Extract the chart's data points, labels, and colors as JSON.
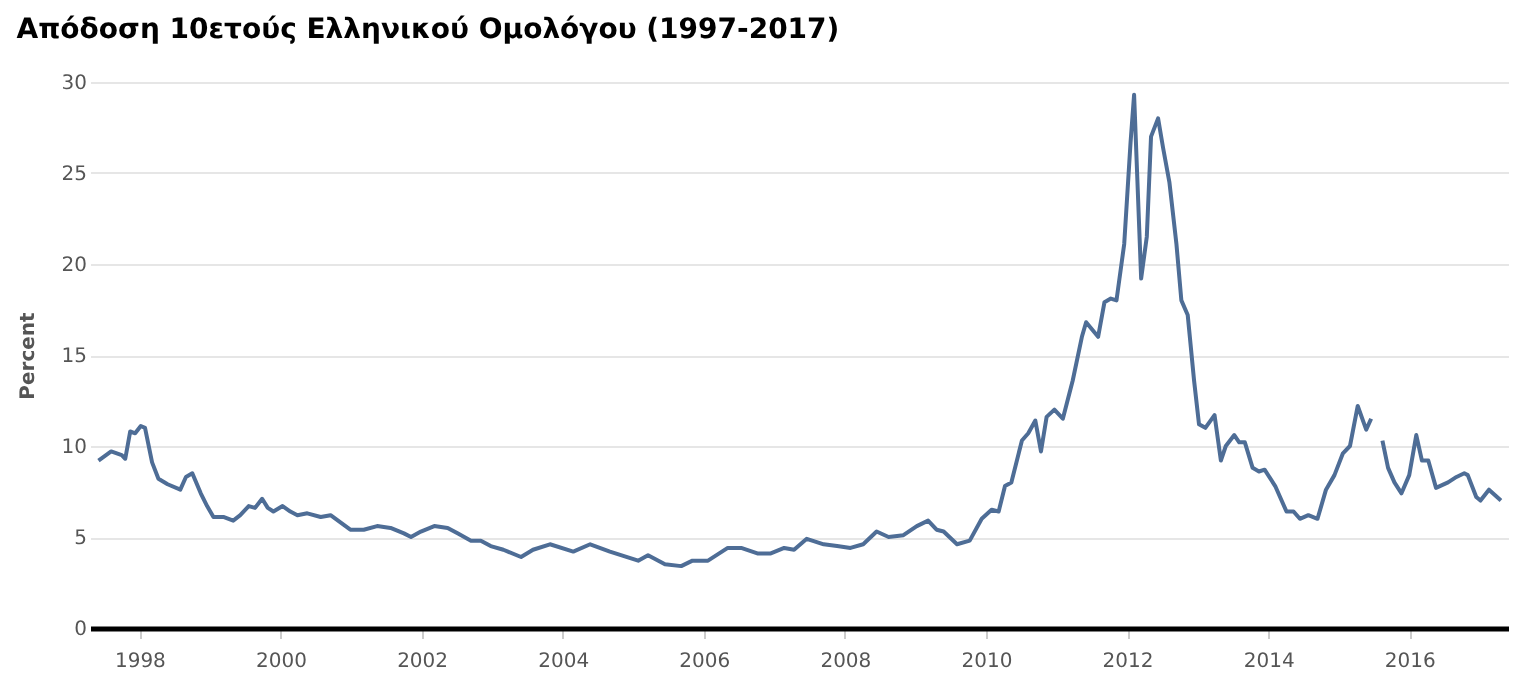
{
  "chart_data": {
    "type": "line",
    "title": "Απόδοση 10ετούς Ελληνικού Ομολόγου (1997-2017)",
    "ylabel": "Percent",
    "x": [
      1997.42,
      1997.6,
      1997.75,
      1997.8,
      1997.87,
      1997.94,
      1998.02,
      1998.08,
      1998.18,
      1998.27,
      1998.4,
      1998.58,
      1998.66,
      1998.75,
      1998.87,
      1998.96,
      1999.05,
      1999.19,
      1999.33,
      1999.43,
      1999.55,
      1999.64,
      1999.74,
      1999.82,
      1999.9,
      2000.03,
      2000.14,
      2000.24,
      2000.38,
      2000.57,
      2000.71,
      2000.85,
      2000.99,
      2001.18,
      2001.37,
      2001.56,
      2001.75,
      2001.85,
      2001.99,
      2002.18,
      2002.37,
      2002.51,
      2002.7,
      2002.84,
      2002.98,
      2003.16,
      2003.41,
      2003.58,
      2003.82,
      2004.15,
      2004.39,
      2004.67,
      2005.07,
      2005.21,
      2005.45,
      2005.68,
      2005.84,
      2006.06,
      2006.34,
      2006.53,
      2006.76,
      2006.95,
      2007.14,
      2007.28,
      2007.46,
      2007.7,
      2007.89,
      2008.08,
      2008.26,
      2008.45,
      2008.62,
      2008.83,
      2009.02,
      2009.18,
      2009.3,
      2009.4,
      2009.59,
      2009.77,
      2009.94,
      2010.08,
      2010.18,
      2010.27,
      2010.36,
      2010.51,
      2010.6,
      2010.7,
      2010.78,
      2010.86,
      2010.97,
      2011.09,
      2011.23,
      2011.36,
      2011.42,
      2011.59,
      2011.68,
      2011.77,
      2011.85,
      2011.96,
      2012.05,
      2012.1,
      2012.2,
      2012.28,
      2012.34,
      2012.44,
      2012.51,
      2012.6,
      2012.7,
      2012.77,
      2012.86,
      2012.95,
      2013.02,
      2013.11,
      2013.24,
      2013.33,
      2013.4,
      2013.52,
      2013.59,
      2013.67,
      2013.78,
      2013.87,
      2013.95,
      2014.1,
      2014.26,
      2014.36,
      2014.45,
      2014.57,
      2014.7,
      2014.82,
      2014.94,
      2015.06,
      2015.16,
      2015.27,
      2015.39,
      2015.46,
      2015.54,
      2015.62,
      2015.7,
      2015.79,
      2015.89,
      2016.0,
      2016.1,
      2016.18,
      2016.27,
      2016.38,
      2016.55,
      2016.67,
      2016.78,
      2016.83,
      2016.95,
      2017.01,
      2017.13,
      2017.3
    ],
    "series": [
      {
        "color": "#4e6d96",
        "values": [
          9.2,
          9.7,
          9.5,
          9.3,
          10.8,
          10.7,
          11.1,
          11.0,
          9.1,
          8.2,
          7.9,
          7.6,
          8.3,
          8.5,
          7.4,
          6.7,
          6.1,
          6.1,
          5.9,
          6.2,
          6.7,
          6.6,
          7.1,
          6.6,
          6.4,
          6.7,
          6.4,
          6.2,
          6.3,
          6.1,
          6.2,
          5.8,
          5.4,
          5.4,
          5.6,
          5.5,
          5.2,
          5.0,
          5.3,
          5.6,
          5.5,
          5.2,
          4.8,
          4.8,
          4.5,
          4.3,
          3.9,
          4.3,
          4.6,
          4.2,
          4.6,
          4.2,
          3.7,
          4.0,
          3.5,
          3.4,
          3.7,
          3.7,
          4.4,
          4.4,
          4.1,
          4.1,
          4.4,
          4.3,
          4.9,
          4.6,
          4.5,
          4.4,
          4.6,
          5.3,
          5.0,
          5.1,
          5.6,
          5.9,
          5.4,
          5.3,
          4.6,
          4.8,
          6.0,
          6.5,
          6.4,
          7.8,
          8.0,
          10.3,
          10.7,
          11.4,
          9.7,
          11.6,
          12.0,
          11.5,
          13.6,
          16.0,
          16.8,
          16.0,
          17.9,
          18.1,
          18.0,
          21.1,
          26.7,
          29.3,
          19.2,
          21.5,
          27.0,
          28.0,
          26.4,
          24.5,
          21.1,
          18.0,
          17.2,
          13.6,
          11.2,
          11.0,
          11.7,
          9.2,
          10.0,
          10.6,
          10.2,
          10.2,
          8.8,
          8.6,
          8.7,
          7.8,
          6.4,
          6.4,
          6.0,
          6.2,
          6.0,
          7.6,
          8.4,
          9.6,
          10.0,
          12.2,
          10.9,
          11.5,
          null,
          10.3,
          8.8,
          8.0,
          7.4,
          8.4,
          10.6,
          9.2,
          9.2,
          7.7,
          8.0,
          8.3,
          8.5,
          8.4,
          7.2,
          7.0,
          7.6,
          7.0
        ]
      }
    ],
    "xlim": [
      1997.3,
      2017.4
    ],
    "xticks": [
      1998,
      2000,
      2002,
      2004,
      2006,
      2008,
      2010,
      2012,
      2014,
      2016
    ],
    "ylim": [
      0,
      30
    ],
    "yticks": [
      0,
      5,
      10,
      15,
      20,
      25,
      30
    ],
    "grid": "y",
    "marker": "none",
    "line_style": "solid"
  }
}
